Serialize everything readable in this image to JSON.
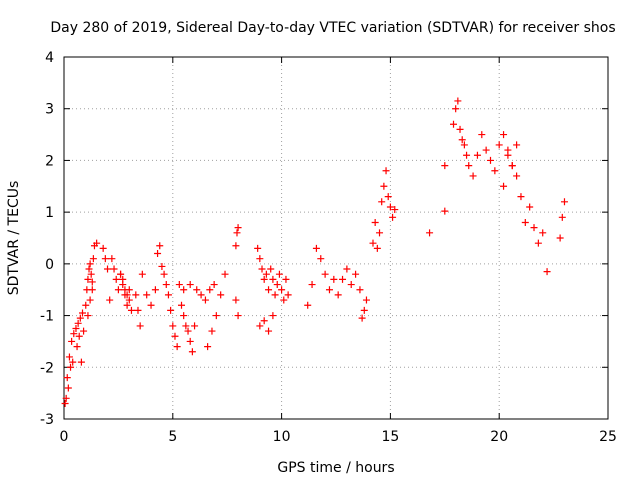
{
  "chart_data": {
    "type": "scatter",
    "title": "Day 280 of 2019, Sidereal Day-to-day VTEC variation (SDTVAR) for receiver shos",
    "xlabel": "GPS time / hours",
    "ylabel": "SDTVAR / TECUs",
    "xlim": [
      0,
      25
    ],
    "ylim": [
      -3,
      4
    ],
    "xticks": [
      0,
      5,
      10,
      15,
      20,
      25
    ],
    "yticks": [
      -3,
      -2,
      -1,
      0,
      1,
      2,
      3,
      4
    ],
    "grid": true,
    "marker": "+",
    "series_color": "#ff0000",
    "segments": [
      {
        "x": [
          0.05,
          0.15,
          0.25,
          0.35,
          0.45,
          0.55,
          0.65,
          0.75,
          0.85
        ],
        "y": [
          -2.7,
          -2.2,
          -1.8,
          -1.5,
          -1.35,
          -1.25,
          -1.15,
          -1.05,
          -0.95
        ]
      },
      {
        "x": [
          0.1,
          0.2,
          0.3,
          0.4
        ],
        "y": [
          -2.6,
          -2.4,
          -2.0,
          -1.9
        ]
      },
      {
        "x": [
          0.6,
          0.7,
          0.8,
          0.9
        ],
        "y": [
          -1.6,
          -1.4,
          -1.9,
          -1.3
        ]
      },
      {
        "x": [
          1.0,
          1.05,
          1.1,
          1.15,
          1.2,
          1.25,
          1.3,
          1.35,
          1.4,
          1.5
        ],
        "y": [
          -0.8,
          -0.5,
          -0.3,
          -0.1,
          0.0,
          -0.2,
          -0.35,
          0.1,
          0.35,
          0.4
        ]
      },
      {
        "x": [
          1.1,
          1.2,
          1.3
        ],
        "y": [
          -1.0,
          -0.7,
          -0.5
        ]
      },
      {
        "x": [
          1.8,
          1.9,
          2.0,
          2.1
        ],
        "y": [
          0.3,
          0.1,
          -0.1,
          -0.7
        ]
      },
      {
        "x": [
          2.2,
          2.3,
          2.4,
          2.5,
          2.6,
          2.7,
          2.8,
          2.9,
          3.0,
          3.1
        ],
        "y": [
          0.1,
          -0.1,
          -0.3,
          -0.5,
          -0.2,
          -0.4,
          -0.6,
          -0.8,
          -0.5,
          -0.9
        ]
      },
      {
        "x": [
          2.6,
          2.7,
          2.8,
          2.9,
          3.0
        ],
        "y": [
          -0.2,
          -0.3,
          -0.5,
          -0.6,
          -0.7
        ]
      },
      {
        "x": [
          3.3,
          3.4,
          3.5
        ],
        "y": [
          -0.6,
          -0.9,
          -1.2
        ]
      },
      {
        "x": [
          3.6,
          3.8,
          4.0,
          4.2,
          4.3,
          4.4
        ],
        "y": [
          -0.2,
          -0.6,
          -0.8,
          -0.5,
          0.2,
          0.35
        ]
      },
      {
        "x": [
          4.5,
          4.6,
          4.7,
          4.8,
          4.9,
          5.0,
          5.1,
          5.2,
          5.3
        ],
        "y": [
          -0.05,
          -0.2,
          -0.4,
          -0.6,
          -0.9,
          -1.2,
          -1.4,
          -1.6,
          -0.4
        ]
      },
      {
        "x": [
          5.4,
          5.5,
          5.6,
          5.7,
          5.8,
          5.9,
          6.0
        ],
        "y": [
          -0.8,
          -1.0,
          -1.2,
          -1.3,
          -1.5,
          -1.7,
          -1.2
        ]
      },
      {
        "x": [
          5.5,
          5.8,
          6.1,
          6.3,
          6.5,
          6.7,
          6.9
        ],
        "y": [
          -0.5,
          -0.4,
          -0.5,
          -0.6,
          -0.7,
          -0.5,
          -0.4
        ]
      },
      {
        "x": [
          6.6,
          6.8,
          7.0,
          7.2,
          7.4
        ],
        "y": [
          -1.6,
          -1.3,
          -1.0,
          -0.6,
          -0.2
        ]
      },
      {
        "x": [
          7.9,
          7.95,
          8.0
        ],
        "y": [
          0.35,
          0.6,
          0.7
        ]
      },
      {
        "x": [
          7.9,
          8.0
        ],
        "y": [
          -0.7,
          -1.0
        ]
      },
      {
        "x": [
          8.9,
          9.0,
          9.1,
          9.2,
          9.3,
          9.4,
          9.5,
          9.6,
          9.7,
          9.8,
          9.9,
          10.0,
          10.1,
          10.2,
          10.3
        ],
        "y": [
          0.3,
          0.1,
          -0.1,
          -0.3,
          -0.2,
          -0.5,
          -0.1,
          -0.3,
          -0.6,
          -0.4,
          -0.2,
          -0.5,
          -0.7,
          -0.3,
          -0.6
        ]
      },
      {
        "x": [
          9.0,
          9.2,
          9.4,
          9.6
        ],
        "y": [
          -1.2,
          -1.1,
          -1.3,
          -1.0
        ]
      },
      {
        "x": [
          11.2,
          11.4,
          11.6,
          11.8,
          12.0,
          12.2,
          12.4,
          12.6
        ],
        "y": [
          -0.8,
          -0.4,
          0.3,
          0.1,
          -0.2,
          -0.5,
          -0.3,
          -0.6
        ]
      },
      {
        "x": [
          12.8,
          13.0,
          13.2,
          13.4,
          13.6
        ],
        "y": [
          -0.3,
          -0.1,
          -0.4,
          -0.2,
          -0.5
        ]
      },
      {
        "x": [
          13.7,
          13.8,
          13.9
        ],
        "y": [
          -1.05,
          -0.9,
          -0.7
        ]
      },
      {
        "x": [
          14.2,
          14.3,
          14.4,
          14.5,
          14.6,
          14.7,
          14.8,
          14.9,
          15.0,
          15.1,
          15.2
        ],
        "y": [
          0.4,
          0.8,
          0.3,
          0.6,
          1.2,
          1.5,
          1.8,
          1.3,
          1.1,
          0.9,
          1.05
        ]
      },
      {
        "x": [
          16.8,
          17.5
        ],
        "y": [
          0.6,
          1.9
        ]
      },
      {
        "x": [
          17.5
        ],
        "y": [
          1.02
        ]
      },
      {
        "x": [
          17.9,
          18.0,
          18.1,
          18.2,
          18.3,
          18.4,
          18.5,
          18.6
        ],
        "y": [
          2.7,
          3.0,
          3.15,
          2.6,
          2.4,
          2.3,
          2.1,
          1.9
        ]
      },
      {
        "x": [
          18.8,
          19.0,
          19.2,
          19.4,
          19.6,
          19.8,
          20.0,
          20.2,
          20.4,
          20.6,
          20.8
        ],
        "y": [
          1.7,
          2.1,
          2.5,
          2.2,
          2.0,
          1.8,
          2.3,
          2.5,
          2.1,
          1.9,
          1.7
        ]
      },
      {
        "x": [
          20.2,
          20.4,
          20.6,
          20.8,
          21.0,
          21.2
        ],
        "y": [
          1.5,
          2.2,
          1.9,
          2.3,
          1.3,
          0.8
        ]
      },
      {
        "x": [
          21.4,
          21.6,
          21.8,
          22.0,
          22.2
        ],
        "y": [
          1.1,
          0.7,
          0.4,
          0.6,
          -0.15
        ]
      },
      {
        "x": [
          22.8,
          22.9,
          23.0
        ],
        "y": [
          0.5,
          0.9,
          1.2
        ]
      }
    ]
  }
}
